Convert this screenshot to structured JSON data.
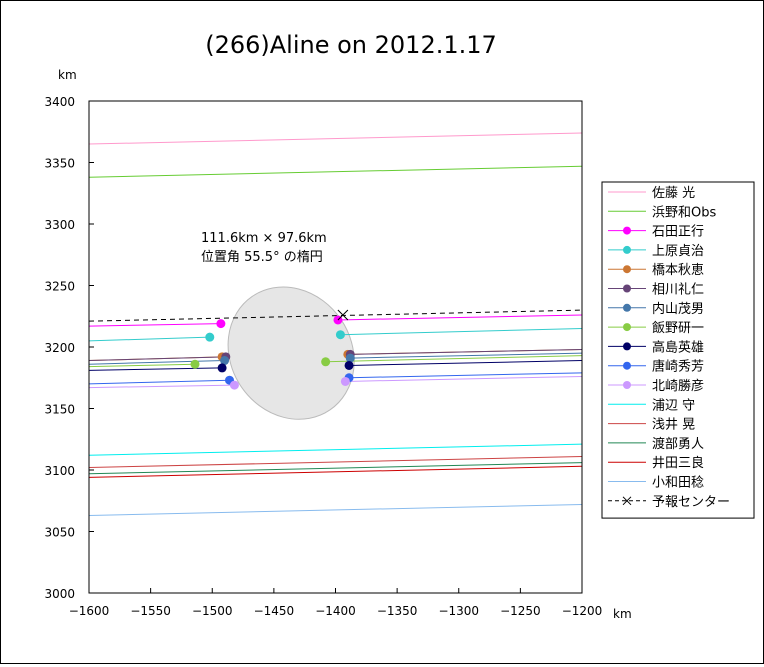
{
  "chart_data": {
    "type": "line",
    "title": "(266)Aline on 2012.1.17",
    "x_unit": "km",
    "y_unit": "km",
    "xlim": [
      -1600,
      -1200
    ],
    "ylim": [
      3000,
      3400
    ],
    "x_ticks": [
      -1600,
      -1550,
      -1500,
      -1450,
      -1400,
      -1350,
      -1300,
      -1250,
      -1200
    ],
    "y_ticks": [
      3000,
      3050,
      3100,
      3150,
      3200,
      3250,
      3300,
      3350,
      3400
    ],
    "x_tick_labels": [
      "−1600",
      "−1550",
      "−1500",
      "−1450",
      "−1400",
      "−1350",
      "−1300",
      "−1250",
      "−1200"
    ],
    "y_tick_labels": [
      "3000",
      "3050",
      "3100",
      "3150",
      "3200",
      "3250",
      "3300",
      "3350",
      "3400"
    ],
    "grid": false,
    "legend_position": "right",
    "annotation": {
      "line1": "111.6km × 97.6km",
      "line2": "位置角 55.5° の楕円"
    },
    "ellipse": {
      "center": [
        -1436,
        3195
      ],
      "major_km": 111.6,
      "minor_km": 97.6,
      "position_angle_deg": 55.5,
      "fill": "#e6e6e6"
    },
    "series": [
      {
        "name": "佐藤 光",
        "color": "#ff99cc",
        "x": [
          -1600,
          -1200
        ],
        "y": [
          3365,
          3374
        ]
      },
      {
        "name": "浜野和Obs",
        "color": "#66cc33",
        "x": [
          -1600,
          -1200
        ],
        "y": [
          3338,
          3347
        ]
      },
      {
        "name": "石田正行",
        "color": "#ff00ff",
        "marker": true,
        "x": [
          -1600,
          -1493,
          -1398,
          -1200
        ],
        "y": [
          3217,
          3219,
          3222,
          3226
        ],
        "chords": [
          [
            -1493,
            3219
          ],
          [
            -1398,
            3222
          ]
        ]
      },
      {
        "name": "上原貞治",
        "color": "#33cccc",
        "marker": true,
        "x": [
          -1600,
          -1502,
          -1396,
          -1200
        ],
        "y": [
          3205,
          3208,
          3210,
          3215
        ],
        "chords": [
          [
            -1502,
            3208
          ],
          [
            -1396,
            3210
          ]
        ]
      },
      {
        "name": "橋本秋恵",
        "color": "#cc7733",
        "marker": true,
        "x": [
          -1600,
          -1492,
          -1390,
          -1200
        ],
        "y": [
          3189,
          3192,
          3194,
          3198
        ],
        "chords": [
          [
            -1492,
            3192
          ],
          [
            -1390,
            3194
          ]
        ]
      },
      {
        "name": "相川礼仁",
        "color": "#664477",
        "marker": true,
        "x": [
          -1600,
          -1489,
          -1388,
          -1200
        ],
        "y": [
          3189,
          3192,
          3194,
          3198
        ],
        "chords": [
          [
            -1489,
            3192
          ],
          [
            -1388,
            3194
          ]
        ]
      },
      {
        "name": "内山茂男",
        "color": "#4477aa",
        "marker": true,
        "x": [
          -1600,
          -1490,
          -1388,
          -1200
        ],
        "y": [
          3186,
          3189,
          3191,
          3195
        ],
        "chords": [
          [
            -1490,
            3189
          ],
          [
            -1388,
            3191
          ]
        ]
      },
      {
        "name": "飯野研一",
        "color": "#88cc44",
        "marker": true,
        "x": [
          -1600,
          -1514,
          -1408,
          -1200
        ],
        "y": [
          3184,
          3186,
          3188,
          3193
        ],
        "chords": [
          [
            -1514,
            3186
          ],
          [
            -1408,
            3188
          ]
        ]
      },
      {
        "name": "高島英雄",
        "color": "#000066",
        "marker": true,
        "x": [
          -1600,
          -1492,
          -1389,
          -1200
        ],
        "y": [
          3181,
          3183,
          3185,
          3189
        ],
        "chords": [
          [
            -1492,
            3183
          ],
          [
            -1389,
            3185
          ]
        ]
      },
      {
        "name": "唐崎秀芳",
        "color": "#3366ee",
        "marker": true,
        "x": [
          -1600,
          -1486,
          -1389,
          -1200
        ],
        "y": [
          3170,
          3173,
          3175,
          3179
        ],
        "chords": [
          [
            -1486,
            3173
          ],
          [
            -1389,
            3175
          ]
        ]
      },
      {
        "name": "北崎勝彦",
        "color": "#cc99ff",
        "marker": true,
        "x": [
          -1600,
          -1482,
          -1392,
          -1200
        ],
        "y": [
          3167,
          3169,
          3172,
          3176
        ],
        "chords": [
          [
            -1482,
            3169
          ],
          [
            -1392,
            3172
          ]
        ]
      },
      {
        "name": "浦辺 守",
        "color": "#00eeee",
        "x": [
          -1600,
          -1200
        ],
        "y": [
          3112,
          3121
        ]
      },
      {
        "name": "浅井 晃",
        "color": "#cc4444",
        "x": [
          -1600,
          -1200
        ],
        "y": [
          3102,
          3111
        ]
      },
      {
        "name": "渡部勇人",
        "color": "#228855",
        "x": [
          -1600,
          -1200
        ],
        "y": [
          3097,
          3106
        ]
      },
      {
        "name": "井田三良",
        "color": "#cc0000",
        "x": [
          -1600,
          -1200
        ],
        "y": [
          3094,
          3103
        ]
      },
      {
        "name": "小和田稔",
        "color": "#88bbee",
        "x": [
          -1600,
          -1200
        ],
        "y": [
          3063,
          3072
        ]
      },
      {
        "name": "予報センター",
        "color": "#000000",
        "dashed": true,
        "x": [
          -1600,
          -1200
        ],
        "y": [
          3221,
          3230
        ],
        "marker_point": [
          -1394,
          3226
        ]
      }
    ]
  }
}
